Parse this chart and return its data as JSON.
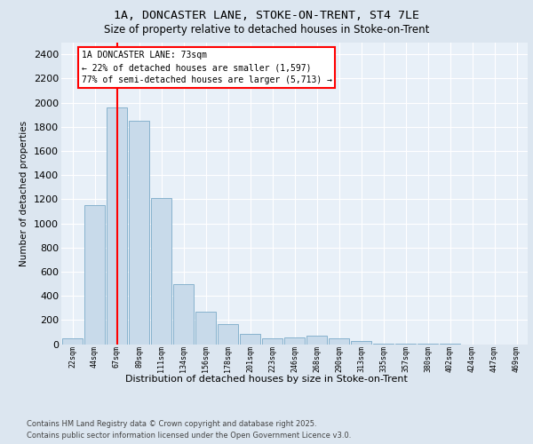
{
  "title1": "1A, DONCASTER LANE, STOKE-ON-TRENT, ST4 7LE",
  "title2": "Size of property relative to detached houses in Stoke-on-Trent",
  "xlabel": "Distribution of detached houses by size in Stoke-on-Trent",
  "ylabel": "Number of detached properties",
  "categories": [
    "22sqm",
    "44sqm",
    "67sqm",
    "89sqm",
    "111sqm",
    "134sqm",
    "156sqm",
    "178sqm",
    "201sqm",
    "223sqm",
    "246sqm",
    "268sqm",
    "290sqm",
    "313sqm",
    "335sqm",
    "357sqm",
    "380sqm",
    "402sqm",
    "424sqm",
    "447sqm",
    "469sqm"
  ],
  "values": [
    50,
    1150,
    1960,
    1850,
    1210,
    500,
    270,
    162,
    85,
    50,
    55,
    70,
    50,
    28,
    5,
    2,
    2,
    1,
    0,
    0,
    0
  ],
  "bar_color": "#c8daea",
  "bar_edge_color": "#7aaac8",
  "red_line_x": 2.0,
  "annotation_title": "1A DONCASTER LANE: 73sqm",
  "annotation_line1": "← 22% of detached houses are smaller (1,597)",
  "annotation_line2": "77% of semi-detached houses are larger (5,713) →",
  "ylim_max": 2500,
  "ytick_step": 200,
  "footer1": "Contains HM Land Registry data © Crown copyright and database right 2025.",
  "footer2": "Contains public sector information licensed under the Open Government Licence v3.0.",
  "fig_bg_color": "#dce6f0",
  "plot_bg_color": "#e8f0f8"
}
